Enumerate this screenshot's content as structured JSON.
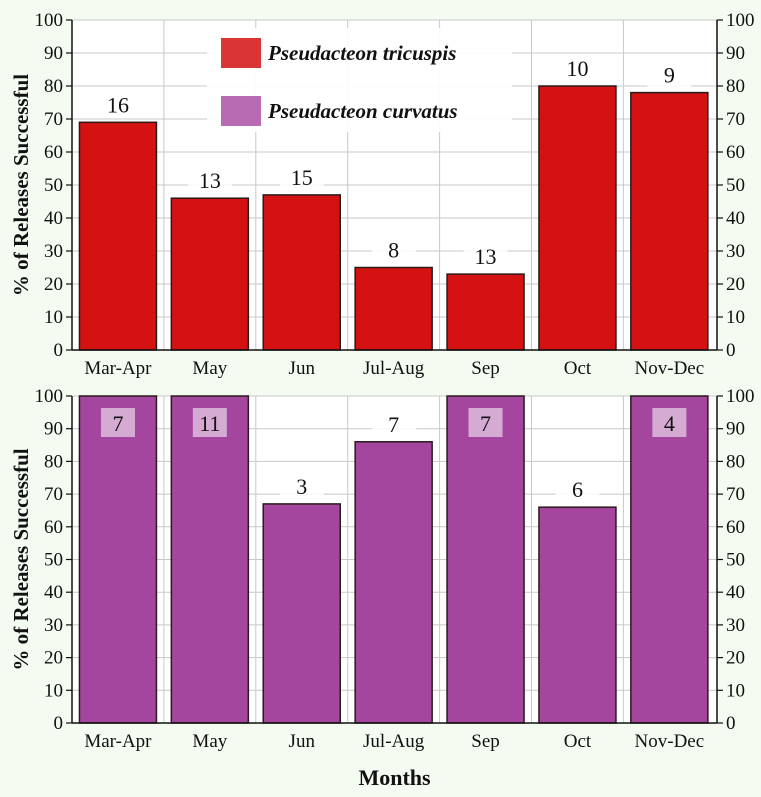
{
  "chart_data": [
    {
      "type": "bar",
      "categories": [
        "Mar-Apr",
        "May",
        "Jun",
        "Jul-Aug",
        "Sep",
        "Oct",
        "Nov-Dec"
      ],
      "series": [
        {
          "name": "Pseudacteon tricuspis",
          "values": [
            69,
            46,
            47,
            25,
            23,
            80,
            78
          ],
          "color": "#d41212",
          "labels": [
            "16",
            "13",
            "15",
            "8",
            "13",
            "10",
            "9"
          ]
        }
      ],
      "ylabel": "% of Releases Successful",
      "xlabel": "",
      "ylim": [
        0,
        100
      ],
      "yticks": [
        0,
        10,
        20,
        30,
        40,
        50,
        60,
        70,
        80,
        90,
        100
      ],
      "grid": true,
      "legend_position": "top-left"
    },
    {
      "type": "bar",
      "categories": [
        "Mar-Apr",
        "May",
        "Jun",
        "Jul-Aug",
        "Sep",
        "Oct",
        "Nov-Dec"
      ],
      "series": [
        {
          "name": "Pseudacteon curvatus",
          "values": [
            100,
            100,
            67,
            86,
            100,
            66,
            100
          ],
          "color": "#a5469e",
          "labels": [
            "7",
            "11",
            "3",
            "7",
            "7",
            "6",
            "4"
          ]
        }
      ],
      "ylabel": "% of Releases Successful",
      "xlabel": "Months",
      "ylim": [
        0,
        100
      ],
      "yticks": [
        0,
        10,
        20,
        30,
        40,
        50,
        60,
        70,
        80,
        90,
        100
      ],
      "grid": true
    }
  ],
  "legend": {
    "items": [
      {
        "label": "Pseudacteon tricuspis",
        "color": "#db3434"
      },
      {
        "label": "Pseudacteon curvatus",
        "color": "#b86ab2"
      }
    ]
  }
}
